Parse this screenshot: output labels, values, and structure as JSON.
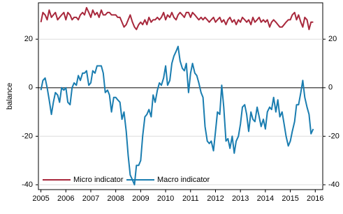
{
  "chart_data": {
    "type": "line",
    "y_label": "balance",
    "xlim": [
      2004.9,
      2016.3
    ],
    "xticks": [
      2005,
      2006,
      2007,
      2008,
      2009,
      2010,
      2011,
      2012,
      2013,
      2014,
      2015,
      2016
    ],
    "ylim": [
      -42,
      35
    ],
    "yticks": [
      -40,
      -20,
      0,
      20
    ],
    "grid": true,
    "legend": "lower left",
    "x": [
      2005,
      2005.08,
      2005.17,
      2005.25,
      2005.33,
      2005.42,
      2005.5,
      2005.58,
      2005.67,
      2005.75,
      2005.83,
      2005.92,
      2006,
      2006.08,
      2006.17,
      2006.25,
      2006.33,
      2006.42,
      2006.5,
      2006.58,
      2006.67,
      2006.75,
      2006.83,
      2006.92,
      2007,
      2007.08,
      2007.17,
      2007.25,
      2007.33,
      2007.42,
      2007.5,
      2007.58,
      2007.67,
      2007.75,
      2007.83,
      2007.92,
      2008,
      2008.08,
      2008.17,
      2008.25,
      2008.33,
      2008.42,
      2008.5,
      2008.58,
      2008.67,
      2008.75,
      2008.83,
      2008.92,
      2009,
      2009.08,
      2009.17,
      2009.25,
      2009.33,
      2009.42,
      2009.5,
      2009.58,
      2009.67,
      2009.75,
      2009.83,
      2009.92,
      2010,
      2010.08,
      2010.17,
      2010.25,
      2010.33,
      2010.42,
      2010.5,
      2010.58,
      2010.67,
      2010.75,
      2010.83,
      2010.92,
      2011,
      2011.08,
      2011.17,
      2011.25,
      2011.33,
      2011.42,
      2011.5,
      2011.58,
      2011.67,
      2011.75,
      2011.83,
      2011.92,
      2012,
      2012.08,
      2012.17,
      2012.25,
      2012.33,
      2012.42,
      2012.5,
      2012.58,
      2012.67,
      2012.75,
      2012.83,
      2012.92,
      2013,
      2013.08,
      2013.17,
      2013.25,
      2013.33,
      2013.42,
      2013.5,
      2013.58,
      2013.67,
      2013.75,
      2013.83,
      2013.92,
      2014,
      2014.08,
      2014.17,
      2014.25,
      2014.33,
      2014.42,
      2014.5,
      2014.58,
      2014.67,
      2014.75,
      2014.83,
      2014.92,
      2015,
      2015.08,
      2015.17,
      2015.25,
      2015.33,
      2015.42,
      2015.5,
      2015.58,
      2015.67,
      2015.75,
      2015.83,
      2015.92
    ],
    "series": [
      {
        "name": "Micro indicator",
        "color": "#a8283c",
        "values": [
          27,
          31,
          30,
          28,
          32,
          29,
          30,
          31,
          28,
          29,
          30,
          31,
          28,
          31,
          30,
          28,
          29,
          29,
          28,
          30,
          31,
          30,
          33,
          31,
          29,
          32,
          30,
          31,
          29,
          32,
          30,
          30,
          31,
          31,
          30,
          30,
          30,
          29,
          29,
          27,
          25,
          26,
          28,
          30,
          27,
          25,
          24,
          26,
          27,
          26,
          28,
          26,
          29,
          27,
          28,
          28,
          29,
          28,
          29,
          31,
          28,
          30,
          29,
          31,
          29,
          28,
          30,
          31,
          30,
          29,
          31,
          31,
          29,
          31,
          30,
          29,
          28,
          29,
          28,
          29,
          28,
          27,
          28,
          29,
          27,
          28,
          29,
          27,
          28,
          26,
          28,
          29,
          27,
          28,
          26,
          28,
          27,
          29,
          28,
          27,
          28,
          26,
          29,
          27,
          28,
          29,
          27,
          28,
          27,
          28,
          25,
          27,
          28,
          27,
          26,
          25,
          25,
          26,
          27,
          28,
          28,
          30,
          31,
          28,
          30,
          27,
          25,
          29,
          28,
          24,
          27,
          27
        ]
      },
      {
        "name": "Macro indicator",
        "color": "#1a7db0",
        "values": [
          -1,
          3,
          4,
          0,
          -5,
          -11,
          -6,
          -2,
          -3,
          -6,
          0,
          -1,
          0,
          -6,
          -7,
          0,
          2,
          1,
          5,
          3,
          6,
          6,
          7,
          1,
          2,
          7,
          6,
          9,
          9,
          9,
          6,
          -2,
          -1,
          -3,
          -10,
          -4,
          -4,
          -5,
          -6,
          -13,
          -10,
          -18,
          -28,
          -36,
          -38,
          -40,
          -32,
          -32,
          -30,
          -20,
          -12,
          -11,
          -9,
          -12,
          -3,
          -6,
          -1,
          2,
          1,
          4,
          9,
          1,
          3,
          10,
          13,
          15,
          17,
          11,
          8,
          7,
          10,
          -2,
          6,
          10,
          6,
          5,
          2,
          -2,
          -4,
          -16,
          -22,
          -23,
          -22,
          -26,
          -18,
          -10,
          -11,
          1,
          -8,
          -22,
          -21,
          -25,
          -20,
          -27,
          -22,
          -20,
          -15,
          -8,
          -7,
          -11,
          -18,
          -10,
          -13,
          -14,
          -8,
          -12,
          -16,
          -13,
          -17,
          -10,
          -8,
          -9,
          -4,
          -10,
          -5,
          -12,
          -10,
          -15,
          -20,
          -24,
          -22,
          -18,
          -14,
          -7,
          -7,
          -2,
          3,
          -4,
          -8,
          -11,
          -19,
          -17
        ]
      }
    ]
  }
}
